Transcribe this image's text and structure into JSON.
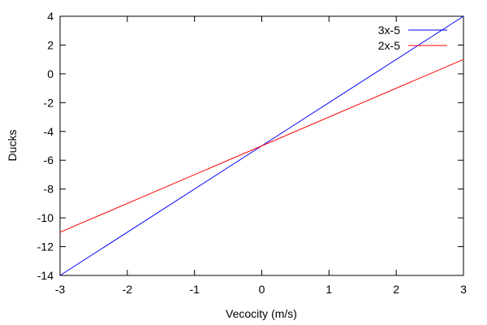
{
  "chart_data": {
    "type": "line",
    "title": "",
    "xlabel": "Vecocity (m/s)",
    "ylabel": "Ducks",
    "xlim": [
      -3,
      3
    ],
    "ylim": [
      -14,
      4
    ],
    "xticks": [
      -3,
      -2,
      -1,
      0,
      1,
      2,
      3
    ],
    "yticks": [
      -14,
      -12,
      -10,
      -8,
      -6,
      -4,
      -2,
      0,
      2,
      4
    ],
    "grid": false,
    "legend": "top-right",
    "series": [
      {
        "name": "3x-5",
        "color": "#0000ff",
        "x": [
          -3,
          3
        ],
        "y": [
          -14,
          4
        ]
      },
      {
        "name": "2x-5",
        "color": "#ff0000",
        "x": [
          -3,
          3
        ],
        "y": [
          -11,
          1
        ]
      }
    ]
  }
}
